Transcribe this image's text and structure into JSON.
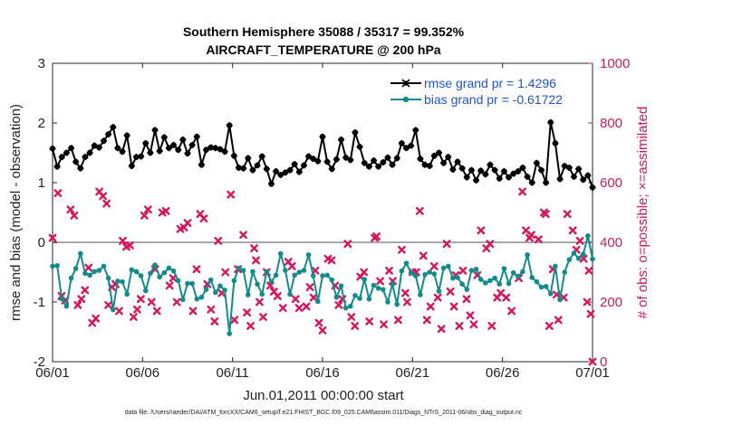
{
  "chart_data": {
    "type": "line",
    "title": "Southern Hemisphere 35088 / 35317 = 99.352%",
    "subtitle": "AIRCRAFT_TEMPERATURE @ 200 hPa",
    "xlabel": "Jun.01,2011 00:00:00 start",
    "ylabel_left": "rmse and bias (model - observation)",
    "ylabel_right": "# of obs: o=possible; ×=assimilated",
    "footnote": "data file: /Users/raeder/DAI/ATM_forcXX/CAM6_setup/f.e21.FHIST_BGC.f09_025.CAM6assim.011/Diags_NTrS_2011-06/obs_diag_output.nc",
    "x_tick_labels": [
      "06/01",
      "06/06",
      "06/11",
      "06/16",
      "06/21",
      "06/26",
      "07/01"
    ],
    "xlim": [
      0,
      30
    ],
    "ylim_left": [
      -2,
      3
    ],
    "y_ticks_left": [
      "-2",
      "-1",
      "0",
      "1",
      "2",
      "3"
    ],
    "ylim_right": [
      0,
      1000
    ],
    "y_ticks_right": [
      "0",
      "200",
      "400",
      "600",
      "800",
      "1000"
    ],
    "legend_position": "top-right",
    "zero_line": 0,
    "colors": {
      "rmse": "#000000",
      "bias": "#138b8b",
      "obs": "#d4185e",
      "axis_right": "#cc1a5a",
      "legend_text": "#1f55c7"
    },
    "series": [
      {
        "name": "rmse grand pr = 1.4296",
        "axis": "left",
        "marker": "star",
        "values": [
          1.57,
          1.27,
          1.43,
          1.5,
          1.58,
          1.35,
          1.24,
          1.43,
          1.5,
          1.62,
          1.59,
          1.7,
          1.81,
          1.93,
          1.58,
          1.52,
          1.79,
          1.28,
          1.43,
          1.44,
          1.66,
          1.5,
          1.88,
          1.53,
          1.76,
          1.58,
          1.63,
          1.55,
          1.72,
          1.49,
          1.63,
          1.77,
          1.3,
          1.55,
          1.59,
          1.58,
          1.56,
          1.52,
          1.96,
          1.45,
          1.25,
          1.24,
          1.41,
          1.21,
          1.29,
          1.44,
          1.23,
          0.98,
          1.19,
          1.13,
          1.17,
          1.21,
          1.31,
          1.18,
          1.29,
          1.44,
          1.4,
          1.36,
          1.77,
          1.35,
          1.23,
          1.39,
          1.72,
          1.42,
          1.38,
          1.84,
          1.6,
          1.33,
          1.27,
          1.37,
          1.27,
          1.34,
          1.42,
          1.3,
          1.41,
          1.66,
          1.58,
          1.62,
          1.88,
          1.4,
          1.3,
          1.28,
          1.45,
          1.5,
          1.33,
          1.43,
          1.22,
          1.35,
          1.24,
          1.09,
          1.21,
          1.04,
          1.2,
          1.14,
          1.3,
          1.21,
          1.07,
          1.19,
          1.09,
          1.15,
          1.19,
          1.25,
          1.1,
          1.0,
          1.33,
          1.21,
          1.0,
          2.01,
          1.66,
          1.06,
          1.28,
          1.25,
          1.1,
          1.23,
          1.05,
          1.12,
          0.92
        ]
      },
      {
        "name": "bias grand pr = -0.61722",
        "axis": "left",
        "marker": "circle",
        "values": [
          -0.4,
          -0.39,
          -0.95,
          -1.07,
          -0.6,
          -0.44,
          -0.19,
          -0.52,
          -0.55,
          -0.49,
          -0.47,
          -0.4,
          -0.6,
          -1.13,
          -0.65,
          -0.66,
          -0.87,
          -0.46,
          -0.49,
          -0.56,
          -0.81,
          -0.52,
          -0.38,
          -0.58,
          -0.51,
          -0.43,
          -0.48,
          -0.64,
          -0.96,
          -0.69,
          -0.69,
          -0.95,
          -0.92,
          -0.79,
          -0.63,
          -0.84,
          -0.73,
          -0.8,
          -1.53,
          -0.64,
          -0.43,
          -0.47,
          -0.88,
          -0.49,
          -0.7,
          -0.87,
          -0.49,
          -0.66,
          -0.55,
          -0.19,
          -0.47,
          -0.87,
          -0.55,
          -0.5,
          -0.47,
          -0.21,
          -0.56,
          -0.99,
          -0.56,
          -0.55,
          -0.63,
          -0.92,
          -0.73,
          -1.1,
          -1.07,
          -0.89,
          -0.94,
          -0.62,
          -0.95,
          -0.72,
          -0.77,
          -0.79,
          -1.0,
          -0.7,
          -1.04,
          -0.48,
          -0.35,
          -0.51,
          -0.56,
          -0.88,
          -0.54,
          -0.5,
          -0.53,
          -0.82,
          -0.43,
          -0.4,
          -0.6,
          -0.59,
          -0.7,
          -0.79,
          -0.47,
          -0.45,
          -0.62,
          -0.68,
          -0.64,
          -0.6,
          -0.7,
          -0.44,
          -0.69,
          -0.51,
          -0.57,
          -0.49,
          -0.21,
          -0.59,
          -0.66,
          -0.75,
          -0.74,
          -0.86,
          -0.4,
          -0.96,
          -0.5,
          -0.29,
          -0.18,
          -0.27,
          -0.2,
          0.11,
          -0.28
        ]
      },
      {
        "name": "obs assimilated",
        "axis": "right",
        "marker": "x",
        "points": [
          [
            0.0,
            415
          ],
          [
            0.3,
            565
          ],
          [
            0.5,
            220
          ],
          [
            0.7,
            205
          ],
          [
            1.0,
            510
          ],
          [
            1.2,
            490
          ],
          [
            1.4,
            190
          ],
          [
            1.6,
            210
          ],
          [
            1.8,
            240
          ],
          [
            2.0,
            315
          ],
          [
            2.2,
            130
          ],
          [
            2.4,
            145
          ],
          [
            2.6,
            570
          ],
          [
            2.8,
            555
          ],
          [
            3.0,
            530
          ],
          [
            3.1,
            190
          ],
          [
            3.3,
            250
          ],
          [
            3.5,
            260
          ],
          [
            3.7,
            170
          ],
          [
            3.9,
            405
          ],
          [
            4.1,
            385
          ],
          [
            4.3,
            390
          ],
          [
            4.5,
            150
          ],
          [
            4.7,
            175
          ],
          [
            4.9,
            210
          ],
          [
            5.1,
            490
          ],
          [
            5.3,
            510
          ],
          [
            5.5,
            200
          ],
          [
            5.7,
            310
          ],
          [
            5.8,
            170
          ],
          [
            6.1,
            500
          ],
          [
            6.3,
            505
          ],
          [
            6.5,
            255
          ],
          [
            6.7,
            280
          ],
          [
            6.9,
            200
          ],
          [
            7.1,
            445
          ],
          [
            7.3,
            450
          ],
          [
            7.5,
            465
          ],
          [
            7.8,
            170
          ],
          [
            8.0,
            310
          ],
          [
            8.2,
            495
          ],
          [
            8.4,
            480
          ],
          [
            8.6,
            260
          ],
          [
            8.8,
            175
          ],
          [
            9.0,
            135
          ],
          [
            9.2,
            405
          ],
          [
            9.4,
            230
          ],
          [
            9.6,
            300
          ],
          [
            9.9,
            560
          ],
          [
            10.1,
            140
          ],
          [
            10.3,
            310
          ],
          [
            10.6,
            425
          ],
          [
            10.8,
            165
          ],
          [
            11.0,
            120
          ],
          [
            11.2,
            380
          ],
          [
            11.3,
            340
          ],
          [
            11.5,
            200
          ],
          [
            11.7,
            150
          ],
          [
            11.9,
            300
          ],
          [
            12.1,
            255
          ],
          [
            12.3,
            235
          ],
          [
            12.5,
            220
          ],
          [
            12.8,
            180
          ],
          [
            13.1,
            335
          ],
          [
            13.3,
            320
          ],
          [
            13.5,
            210
          ],
          [
            13.7,
            180
          ],
          [
            14.1,
            185
          ],
          [
            14.3,
            250
          ],
          [
            14.5,
            215
          ],
          [
            14.6,
            305
          ],
          [
            14.8,
            130
          ],
          [
            15.0,
            105
          ],
          [
            15.3,
            345
          ],
          [
            15.5,
            340
          ],
          [
            15.7,
            255
          ],
          [
            15.9,
            190
          ],
          [
            16.1,
            210
          ],
          [
            16.4,
            395
          ],
          [
            16.6,
            150
          ],
          [
            16.8,
            120
          ],
          [
            17.1,
            285
          ],
          [
            17.3,
            300
          ],
          [
            17.6,
            135
          ],
          [
            17.9,
            415
          ],
          [
            18.0,
            420
          ],
          [
            18.2,
            270
          ],
          [
            18.4,
            125
          ],
          [
            18.7,
            305
          ],
          [
            18.9,
            270
          ],
          [
            19.2,
            140
          ],
          [
            19.4,
            375
          ],
          [
            19.6,
            230
          ],
          [
            19.7,
            200
          ],
          [
            20.0,
            300
          ],
          [
            20.2,
            300
          ],
          [
            20.4,
            505
          ],
          [
            20.6,
            355
          ],
          [
            20.8,
            140
          ],
          [
            21.0,
            185
          ],
          [
            21.2,
            320
          ],
          [
            21.4,
            215
          ],
          [
            21.6,
            110
          ],
          [
            21.9,
            395
          ],
          [
            22.1,
            235
          ],
          [
            22.3,
            185
          ],
          [
            22.4,
            290
          ],
          [
            22.6,
            120
          ],
          [
            22.8,
            305
          ],
          [
            23.0,
            210
          ],
          [
            23.2,
            155
          ],
          [
            23.4,
            125
          ],
          [
            23.6,
            290
          ],
          [
            23.8,
            440
          ],
          [
            24.1,
            380
          ],
          [
            24.3,
            395
          ],
          [
            24.4,
            120
          ],
          [
            24.7,
            215
          ],
          [
            24.9,
            230
          ],
          [
            25.2,
            215
          ],
          [
            25.5,
            170
          ],
          [
            25.9,
            280
          ],
          [
            26.1,
            570
          ],
          [
            26.3,
            440
          ],
          [
            26.5,
            415
          ],
          [
            26.6,
            425
          ],
          [
            27.0,
            410
          ],
          [
            27.3,
            500
          ],
          [
            27.4,
            495
          ],
          [
            27.6,
            120
          ],
          [
            27.8,
            310
          ],
          [
            28.0,
            225
          ],
          [
            28.1,
            140
          ],
          [
            28.4,
            215
          ],
          [
            28.6,
            495
          ],
          [
            28.9,
            440
          ],
          [
            29.1,
            375
          ],
          [
            29.3,
            405
          ],
          [
            29.5,
            345
          ],
          [
            29.7,
            200
          ],
          [
            29.8,
            305
          ],
          [
            29.9,
            160
          ],
          [
            30.0,
            0
          ]
        ]
      }
    ]
  }
}
